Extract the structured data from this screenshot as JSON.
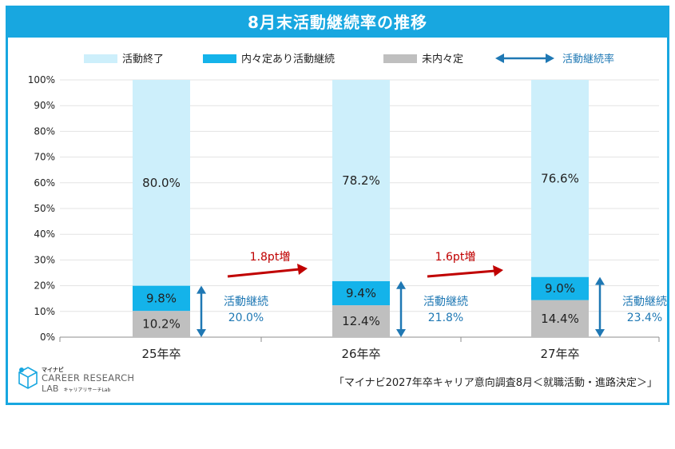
{
  "title": "8月末活動継続率の推移",
  "legend": {
    "ended": "活動終了",
    "continuing": "内々定あり活動継続",
    "no_offer": "未内々定",
    "rate": "活動継続率"
  },
  "colors": {
    "ended": "#cdeffb",
    "continuing": "#14b3ea",
    "no_offer": "#bfbfbf",
    "arrow_blue": "#1f78b4",
    "arrow_red": "#c00000",
    "header": "#18a7e0"
  },
  "chart_data": {
    "type": "bar",
    "stacked": true,
    "categories": [
      "25年卒",
      "26年卒",
      "27年卒"
    ],
    "series": [
      {
        "name": "未内々定",
        "values": [
          10.2,
          12.4,
          14.4
        ],
        "labels": [
          "10.2%",
          "12.4%",
          "14.4%"
        ]
      },
      {
        "name": "内々定あり活動継続",
        "values": [
          9.8,
          9.4,
          9.0
        ],
        "labels": [
          "9.8%",
          "9.4%",
          "9.0%"
        ]
      },
      {
        "name": "活動終了",
        "values": [
          80.0,
          78.2,
          76.6
        ],
        "labels": [
          "80.0%",
          "78.2%",
          "76.6%"
        ]
      }
    ],
    "yticks": [
      "0%",
      "10%",
      "20%",
      "30%",
      "40%",
      "50%",
      "60%",
      "70%",
      "80%",
      "90%",
      "100%"
    ],
    "ylim": [
      0,
      100
    ],
    "continuation": {
      "label": "活動継続",
      "values": [
        "20.0%",
        "21.8%",
        "23.4%"
      ]
    },
    "increases": [
      "1.8pt増",
      "1.6pt増"
    ]
  },
  "source": "「マイナビ2027年卒キャリア意向調査8月＜就職活動・進路決定＞」",
  "logo": {
    "top": "マイナビ",
    "main": "CAREER RESEARCH",
    "sub": "LAB",
    "sub2": "キャリアリサーチLab"
  }
}
